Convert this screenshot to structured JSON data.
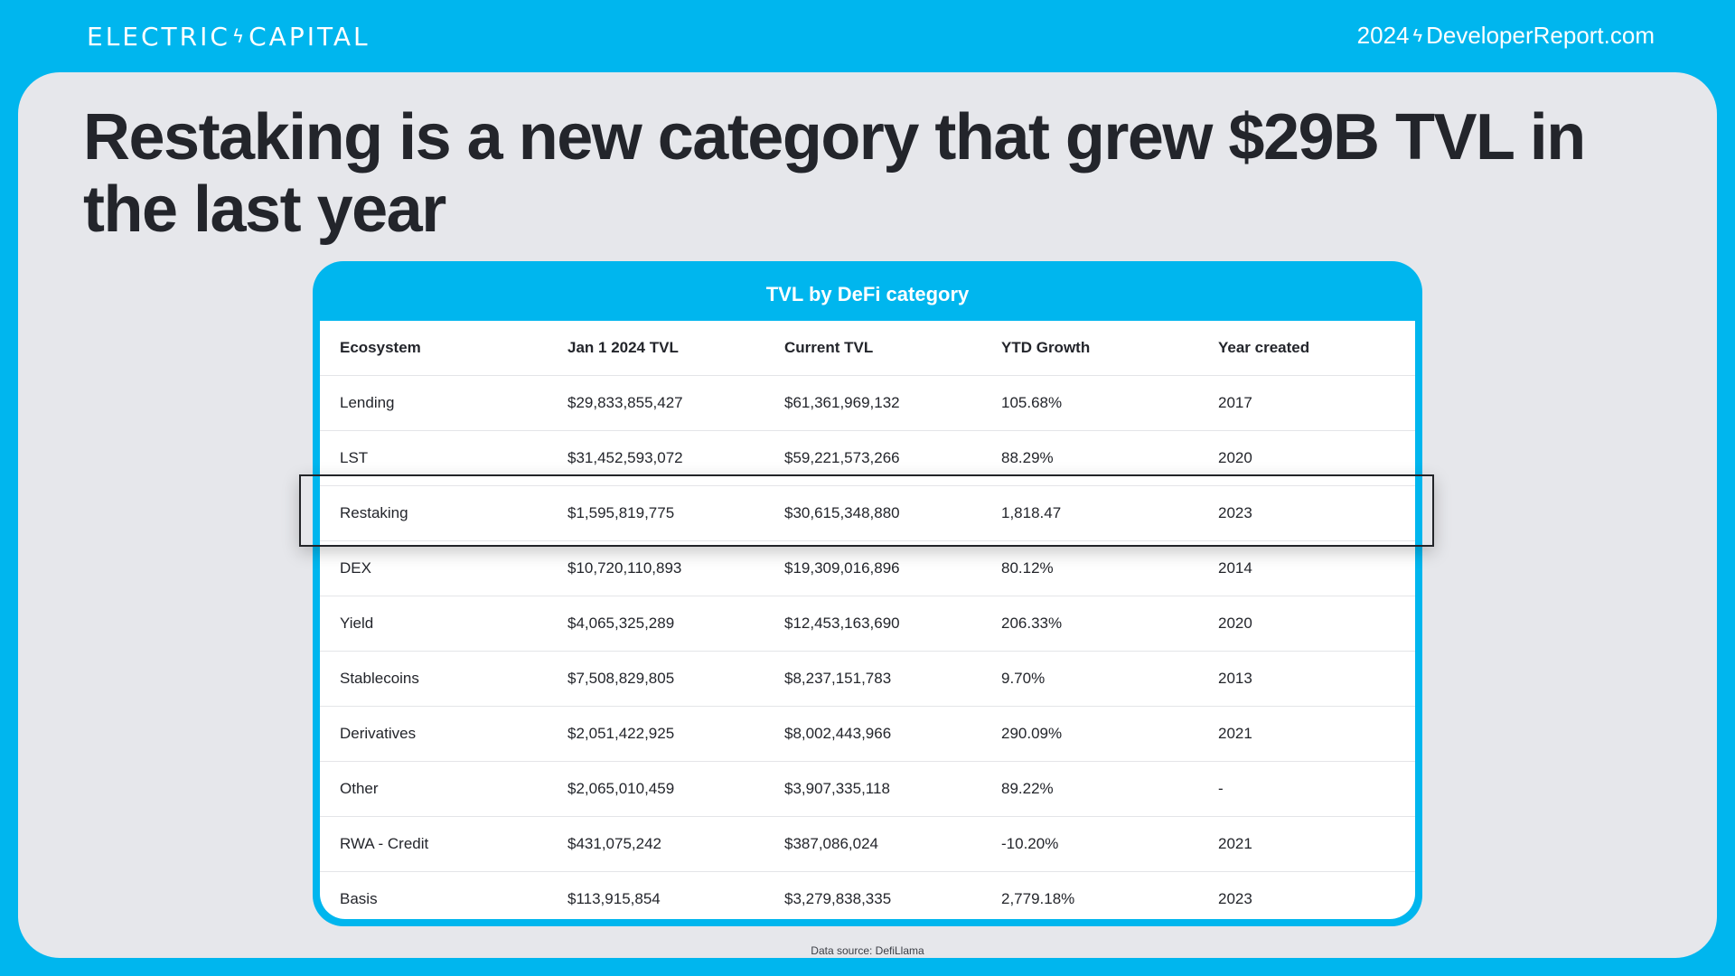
{
  "header": {
    "brand_left": "ELECTRIC",
    "brand_right": "CAPITAL",
    "site_year": "2024",
    "site_domain": "DeveloperReport.com"
  },
  "colors": {
    "brand_blue": "#00b6ee",
    "panel_bg": "#e6e7eb",
    "text_dark": "#23252b"
  },
  "icons": {
    "brand_separator": "lightning-bolt-icon",
    "site_separator": "lightning-bolt-icon"
  },
  "headline": "Restaking is a new category that grew $29B TVL in the last year",
  "table": {
    "title": "TVL by DeFi category",
    "columns": [
      "Ecosystem",
      "Jan 1 2024 TVL",
      "Current TVL",
      "YTD Growth",
      "Year created"
    ],
    "rows": [
      [
        "Lending",
        "$29,833,855,427",
        "$61,361,969,132",
        "105.68%",
        "2017"
      ],
      [
        "LST",
        "$31,452,593,072",
        "$59,221,573,266",
        "88.29%",
        "2020"
      ],
      [
        "Restaking",
        "$1,595,819,775",
        "$30,615,348,880",
        "1,818.47",
        "2023"
      ],
      [
        "DEX",
        "$10,720,110,893",
        "$19,309,016,896",
        "80.12%",
        "2014"
      ],
      [
        "Yield",
        "$4,065,325,289",
        "$12,453,163,690",
        "206.33%",
        "2020"
      ],
      [
        "Stablecoins",
        "$7,508,829,805",
        "$8,237,151,783",
        "9.70%",
        "2013"
      ],
      [
        "Derivatives",
        "$2,051,422,925",
        "$8,002,443,966",
        "290.09%",
        "2021"
      ],
      [
        "Other",
        "$2,065,010,459",
        "$3,907,335,118",
        "89.22%",
        "-"
      ],
      [
        "RWA - Credit",
        "$431,075,242",
        "$387,086,024",
        "-10.20%",
        "2021"
      ],
      [
        "Basis",
        "$113,915,854",
        "$3,279,838,335",
        "2,779.18%",
        "2023"
      ]
    ],
    "highlighted_row": "Restaking"
  },
  "footer": {
    "source": "Data source: DefiLlama"
  }
}
